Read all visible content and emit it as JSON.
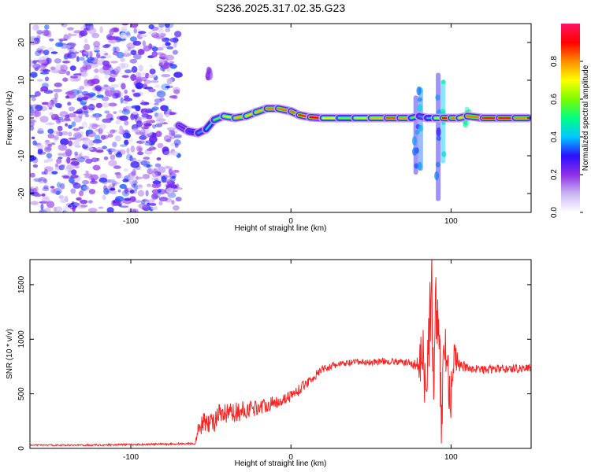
{
  "chart_data": [
    {
      "type": "heatmap",
      "title": "S236.2025.317.02.35.G23",
      "xlabel": "Height of straight line (km)",
      "ylabel": "Frequency (Hz)",
      "xlim": [
        -163,
        150
      ],
      "ylim": [
        -25,
        25
      ],
      "xticks": [
        -100,
        0,
        100
      ],
      "yticks": [
        -20,
        -10,
        0,
        10,
        20
      ],
      "colorbar": {
        "label": "Normalized spectral amplitude",
        "range": [
          0.0,
          1.0
        ],
        "ticks": [
          0.0,
          0.2,
          0.4,
          0.6,
          0.8
        ],
        "tick_labels": [
          "0.0",
          "0.2",
          "0.4",
          "0.6",
          "0.8"
        ],
        "colormap": [
          "#ffffff",
          "#c9b6f2",
          "#8f2ee8",
          "#2a10ff",
          "#00c8ff",
          "#00ff80",
          "#7cfc00",
          "#ffff00",
          "#ff8c00",
          "#ff0000",
          "#ff1464"
        ]
      },
      "noise_region": {
        "x_range": [
          -163,
          -70
        ],
        "y_range": [
          -25,
          25
        ],
        "amplitude": [
          0.05,
          0.35
        ]
      },
      "ridge": [
        {
          "x": -70,
          "f": -2.0,
          "amp": 0.22
        },
        {
          "x": -64,
          "f": -3.5,
          "amp": 0.28
        },
        {
          "x": -58,
          "f": -4.0,
          "amp": 0.35
        },
        {
          "x": -53,
          "f": -3.0,
          "amp": 0.4
        },
        {
          "x": -48,
          "f": -0.5,
          "amp": 0.5
        },
        {
          "x": -42,
          "f": 0.5,
          "amp": 0.62
        },
        {
          "x": -35,
          "f": 0.0,
          "amp": 0.72
        },
        {
          "x": -28,
          "f": 0.5,
          "amp": 0.8
        },
        {
          "x": -22,
          "f": 1.5,
          "amp": 0.68
        },
        {
          "x": -15,
          "f": 2.5,
          "amp": 0.85
        },
        {
          "x": -8,
          "f": 2.5,
          "amp": 0.78
        },
        {
          "x": 0,
          "f": 1.8,
          "amp": 0.85
        },
        {
          "x": 5,
          "f": 0.8,
          "amp": 0.8
        },
        {
          "x": 12,
          "f": 0.2,
          "amp": 0.95
        },
        {
          "x": 20,
          "f": 0.0,
          "amp": 0.85
        },
        {
          "x": 30,
          "f": 0.0,
          "amp": 0.55
        },
        {
          "x": 40,
          "f": 0.0,
          "amp": 0.6
        },
        {
          "x": 50,
          "f": 0.0,
          "amp": 0.72
        },
        {
          "x": 60,
          "f": 0.0,
          "amp": 0.8
        },
        {
          "x": 68,
          "f": 0.0,
          "amp": 0.88
        },
        {
          "x": 75,
          "f": 0.0,
          "amp": 0.7
        },
        {
          "x": 80,
          "f": 0.5,
          "amp": 0.4
        },
        {
          "x": 85,
          "f": 0.0,
          "amp": 0.35
        },
        {
          "x": 90,
          "f": 0.0,
          "amp": 0.45
        },
        {
          "x": 95,
          "f": 0.0,
          "amp": 0.88
        },
        {
          "x": 100,
          "f": 0.0,
          "amp": 0.92
        },
        {
          "x": 105,
          "f": 0.0,
          "amp": 0.7
        },
        {
          "x": 110,
          "f": 0.5,
          "amp": 0.78
        },
        {
          "x": 120,
          "f": 0.0,
          "amp": 0.85
        },
        {
          "x": 130,
          "f": 0.0,
          "amp": 0.92
        },
        {
          "x": 140,
          "f": 0.0,
          "amp": 0.85
        },
        {
          "x": 148,
          "f": 0.0,
          "amp": 0.75
        }
      ],
      "vertical_streaks": [
        {
          "x": 78,
          "f_range": [
            -15,
            6
          ],
          "amp": 0.3
        },
        {
          "x": 81,
          "f_range": [
            -14,
            8
          ],
          "amp": 0.35
        },
        {
          "x": 92,
          "f_range": [
            -22,
            12
          ],
          "amp": 0.3
        },
        {
          "x": 95,
          "f_range": [
            -12,
            10
          ],
          "amp": 0.4
        },
        {
          "x": 110,
          "f_range": [
            -2,
            3
          ],
          "amp": 0.45
        },
        {
          "x": -51,
          "f_range": [
            10,
            13
          ],
          "amp": 0.15
        }
      ]
    },
    {
      "type": "line",
      "title": "",
      "xlabel": "Height of straight line (km)",
      "ylabel": "SNR (10 * v/v)",
      "xlim": [
        -163,
        150
      ],
      "ylim": [
        0,
        1730
      ],
      "xticks": [
        -100,
        0,
        100
      ],
      "yticks": [
        0,
        500,
        1000,
        1500
      ],
      "series": [
        {
          "name": "SNR",
          "color": "#ff2020",
          "x": [
            -163,
            -130,
            -100,
            -75,
            -60,
            -58,
            -55,
            -52,
            -50,
            -45,
            -40,
            -35,
            -30,
            -20,
            -10,
            0,
            10,
            20,
            30,
            40,
            50,
            60,
            70,
            75,
            78,
            80,
            82,
            84,
            86,
            88,
            89,
            90,
            92,
            94,
            96,
            98,
            100,
            102,
            105,
            110,
            120,
            130,
            140,
            150
          ],
          "values": [
            30,
            30,
            35,
            40,
            45,
            160,
            230,
            260,
            230,
            290,
            310,
            330,
            345,
            380,
            420,
            480,
            600,
            730,
            770,
            790,
            790,
            800,
            790,
            780,
            760,
            750,
            880,
            700,
            1000,
            1500,
            500,
            1250,
            1050,
            300,
            1000,
            700,
            500,
            850,
            760,
            740,
            720,
            730,
            730,
            740
          ],
          "noise_amplitude": [
            5,
            8,
            8,
            10,
            10,
            60,
            90,
            110,
            100,
            110,
            100,
            90,
            90,
            70,
            60,
            55,
            45,
            35,
            30,
            30,
            30,
            30,
            30,
            40,
            60,
            120,
            300,
            350,
            380,
            400,
            420,
            420,
            400,
            380,
            350,
            300,
            250,
            150,
            60,
            40,
            40,
            40,
            40,
            40
          ]
        }
      ]
    }
  ]
}
